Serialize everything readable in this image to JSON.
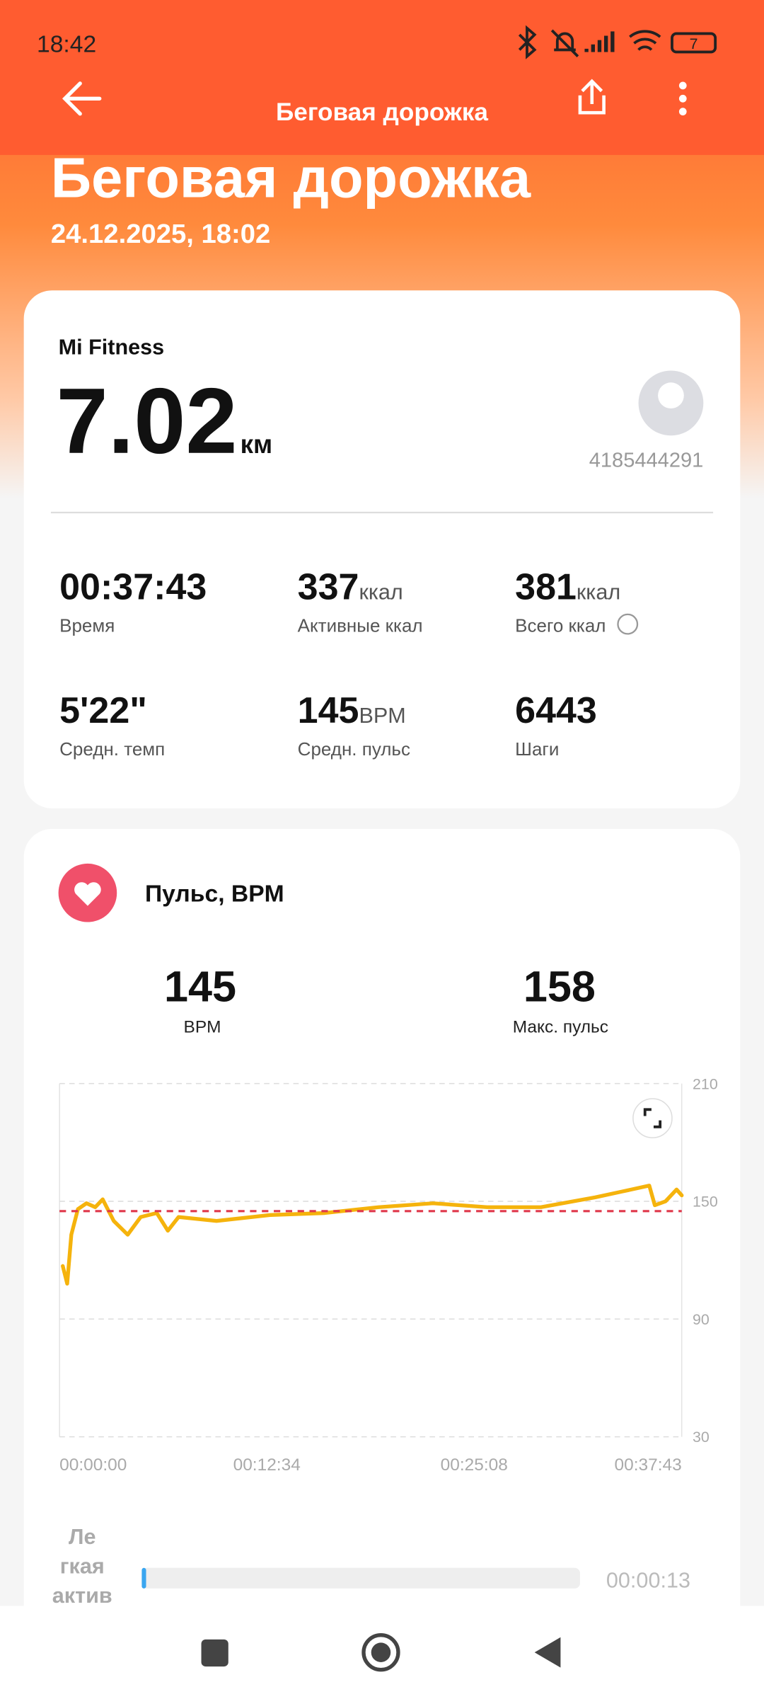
{
  "status_bar": {
    "time": "18:42",
    "battery": "7"
  },
  "header": {
    "title": "Беговая дорожка"
  },
  "hero": {
    "title": "Беговая дорожка",
    "date": "24.12.2025, 18:02"
  },
  "summary": {
    "source": "Mi Fitness",
    "distance": "7.02",
    "distance_unit": "км",
    "user_id": "4185444291"
  },
  "stats": [
    {
      "value": "00:37:43",
      "label": "Время"
    },
    {
      "value": "337",
      "unit": "ккал",
      "label": "Активные ккал"
    },
    {
      "value": "381",
      "unit": "ккал",
      "label": "Всего ккал"
    },
    {
      "value": "5'22\"",
      "label": "Средн. темп"
    },
    {
      "value": "145",
      "unit": "BPM",
      "label": "Средн. пульс"
    },
    {
      "value": "6443",
      "label": "Шаги"
    }
  ],
  "heart": {
    "title": "Пульс, BPM",
    "avg": "145",
    "avg_label": "BPM",
    "max": "158",
    "max_label": "Макс. пульс"
  },
  "chart_data": {
    "type": "line",
    "x": [
      12,
      28,
      43,
      67,
      98,
      130,
      157,
      197,
      248,
      295,
      354,
      394,
      433,
      571,
      767,
      964,
      1161,
      1358,
      1555,
      1751,
      1948,
      2047,
      2145,
      2165,
      2204,
      2244,
      2263
    ],
    "values": [
      117,
      108,
      133,
      146,
      149,
      147,
      151,
      140,
      133,
      142,
      144,
      135,
      142,
      140,
      143,
      144,
      147,
      149,
      147,
      147,
      152,
      155,
      158,
      148,
      150,
      156,
      153
    ],
    "color": "#f5b30c",
    "xlim": [
      0,
      2263
    ],
    "xticks": [
      {
        "value": 0,
        "label": "00:00:00"
      },
      {
        "value": 754,
        "label": "00:12:34"
      },
      {
        "value": 1508,
        "label": "00:25:08"
      },
      {
        "value": 2263,
        "label": "00:37:43"
      }
    ],
    "ylim": [
      30,
      210
    ],
    "yticks": [
      30,
      90,
      150,
      210
    ],
    "reference_line": 145,
    "reference_color": "#e0384b",
    "grid": true
  },
  "zone": {
    "label_lines": [
      "Ле",
      "гкая",
      "актив"
    ],
    "time": "00:00:13"
  }
}
